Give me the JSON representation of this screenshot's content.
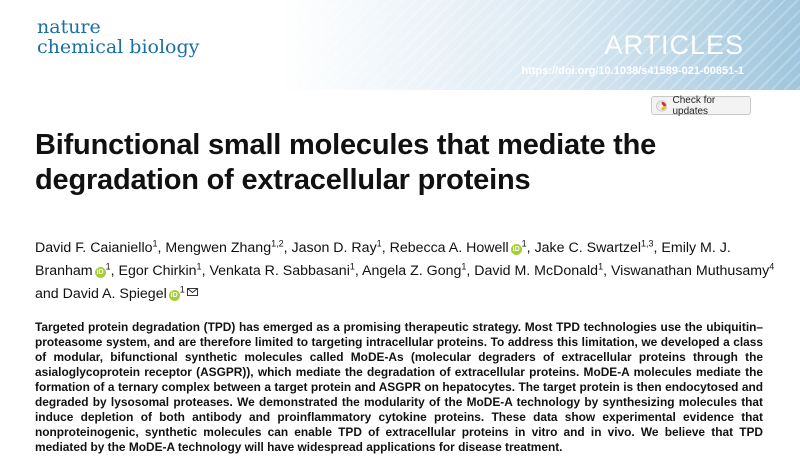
{
  "journal": {
    "name_line1": "nature",
    "name_line2": "chemical biology"
  },
  "header": {
    "section_label": "ARTICLES",
    "doi": "https://doi.org/10.1038/s41589-021-00851-1"
  },
  "check_updates": {
    "label": "Check for updates",
    "icon": "check-updates-icon"
  },
  "article": {
    "title_line1": "Bifunctional small molecules that mediate the",
    "title_line2": "degradation of extracellular proteins"
  },
  "authors": [
    {
      "name": "David F. Caianiello",
      "sup": "1",
      "orcid": false,
      "corresponding": false,
      "sep": ", "
    },
    {
      "name": "Mengwen Zhang",
      "sup": "1,2",
      "orcid": false,
      "corresponding": false,
      "sep": ", "
    },
    {
      "name": "Jason D. Ray",
      "sup": "1",
      "orcid": false,
      "corresponding": false,
      "sep": ", "
    },
    {
      "name": "Rebecca A. Howell",
      "sup": "1",
      "orcid": true,
      "corresponding": false,
      "sep": ", "
    },
    {
      "name": "Jake C. Swartzel",
      "sup": "1,3",
      "orcid": false,
      "corresponding": false,
      "sep": ", "
    },
    {
      "name": "Emily M. J. Branham",
      "sup": "1",
      "orcid": true,
      "corresponding": false,
      "sep": ", "
    },
    {
      "name": "Egor Chirkin",
      "sup": "1",
      "orcid": false,
      "corresponding": false,
      "sep": ", "
    },
    {
      "name": "Venkata R. Sabbasani",
      "sup": "1",
      "orcid": false,
      "corresponding": false,
      "sep": ", "
    },
    {
      "name": "Angela Z. Gong",
      "sup": "1",
      "orcid": false,
      "corresponding": false,
      "sep": ", "
    },
    {
      "name": "David M. McDonald",
      "sup": "1",
      "orcid": false,
      "corresponding": false,
      "sep": ", "
    },
    {
      "name": "Viswanathan Muthusamy",
      "sup": "4",
      "orcid": false,
      "corresponding": false,
      "sep": " and "
    },
    {
      "name": "David A. Spiegel",
      "sup": "1",
      "orcid": true,
      "corresponding": true,
      "sep": ""
    }
  ],
  "abstract": "Targeted protein degradation (TPD) has emerged as a promising therapeutic strategy. Most TPD technologies use the ubiquitin–proteasome system, and are therefore limited to targeting intracellular proteins. To address this limitation, we developed a class of modular, bifunctional synthetic molecules called MoDE-As (molecular degraders of extracellular proteins through the asialoglycoprotein receptor (ASGPR)), which mediate the degradation of extracellular proteins. MoDE-A molecules mediate the formation of a ternary complex between a target protein and ASGPR on hepatocytes. The target protein is then endocytosed and degraded by lysosomal proteases. We demonstrated the modularity of the MoDE-A technology by synthesizing molecules that induce depletion of both antibody and proinflammatory cytokine proteins. These data show experimental evidence that nonproteinogenic, synthetic molecules can enable TPD of extracellular proteins in vitro and in vivo. We believe that TPD mediated by the MoDE-A technology will have widespread applications for disease treatment.",
  "colors": {
    "journal_blue": "#1b6fa3",
    "orcid_green": "#a6ce39",
    "header_gradient_end": "#9fc6dd"
  }
}
